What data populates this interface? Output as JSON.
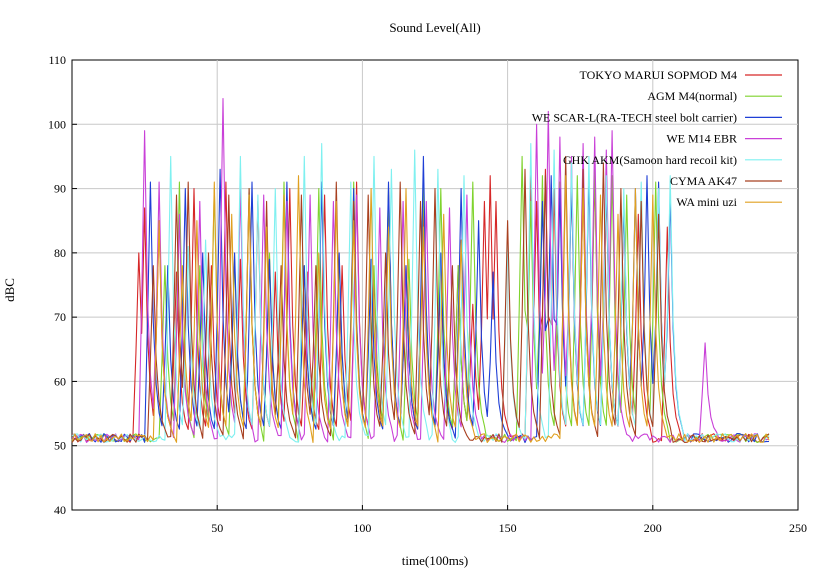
{
  "chart_data": {
    "type": "line",
    "title": "Sound Level(All)",
    "xlabel": "time(100ms)",
    "ylabel": "dBC",
    "xlim": [
      0,
      250
    ],
    "ylim": [
      40,
      110
    ],
    "xticks": [
      50,
      100,
      150,
      200,
      250
    ],
    "yticks": [
      40,
      50,
      60,
      70,
      80,
      90,
      100,
      110
    ],
    "grid": true,
    "legend_position": "top-right",
    "baseline_db": 51.5,
    "series": [
      {
        "name": "TOKYO MARUI SOPMOD M4",
        "color": "#d62728",
        "peaks": [
          [
            23,
            80
          ],
          [
            25,
            87
          ],
          [
            30,
            85
          ],
          [
            36,
            77
          ],
          [
            42,
            90
          ],
          [
            48,
            78
          ],
          [
            53,
            91
          ],
          [
            58,
            79
          ],
          [
            64,
            88
          ],
          [
            70,
            77
          ],
          [
            75,
            90
          ],
          [
            81,
            77
          ],
          [
            87,
            89
          ],
          [
            93,
            78
          ],
          [
            98,
            91
          ],
          [
            104,
            76
          ],
          [
            109,
            89
          ],
          [
            115,
            78
          ],
          [
            121,
            88
          ],
          [
            127,
            77
          ],
          [
            133,
            78
          ],
          [
            138,
            72
          ],
          [
            142,
            88
          ],
          [
            144,
            92
          ],
          [
            146,
            88
          ],
          [
            158,
            92
          ],
          [
            160,
            88
          ],
          [
            163,
            93
          ],
          [
            166,
            90
          ],
          [
            172,
            92
          ],
          [
            176,
            90
          ],
          [
            180,
            92
          ],
          [
            184,
            90
          ],
          [
            190,
            88
          ],
          [
            195,
            86
          ],
          [
            205,
            84
          ]
        ]
      },
      {
        "name": "AGM M4(normal)",
        "color": "#7fd32d",
        "peaks": [
          [
            32,
            78
          ],
          [
            37,
            91
          ],
          [
            44,
            78
          ],
          [
            49,
            90
          ],
          [
            56,
            79
          ],
          [
            61,
            90
          ],
          [
            68,
            80
          ],
          [
            73,
            91
          ],
          [
            80,
            78
          ],
          [
            85,
            90
          ],
          [
            92,
            79
          ],
          [
            97,
            91
          ],
          [
            104,
            78
          ],
          [
            109,
            90
          ],
          [
            116,
            79
          ],
          [
            121,
            91
          ],
          [
            127,
            90
          ],
          [
            133,
            78
          ],
          [
            138,
            91
          ],
          [
            155,
            95
          ],
          [
            158,
            88
          ],
          [
            162,
            92
          ],
          [
            168,
            91
          ],
          [
            174,
            92
          ],
          [
            180,
            93
          ],
          [
            186,
            92
          ],
          [
            191,
            89
          ],
          [
            196,
            90
          ],
          [
            201,
            91
          ]
        ]
      },
      {
        "name": "WE SCAR-L(RA-TECH steel bolt carrier)",
        "color": "#1f3fd6",
        "peaks": [
          [
            27,
            91
          ],
          [
            33,
            78
          ],
          [
            39,
            90
          ],
          [
            45,
            80
          ],
          [
            51,
            93
          ],
          [
            56,
            80
          ],
          [
            62,
            91
          ],
          [
            68,
            79
          ],
          [
            74,
            91
          ],
          [
            80,
            78
          ],
          [
            86,
            91
          ],
          [
            92,
            80
          ],
          [
            97,
            90
          ],
          [
            103,
            79
          ],
          [
            109,
            91
          ],
          [
            115,
            78
          ],
          [
            121,
            95
          ],
          [
            127,
            80
          ],
          [
            134,
            90
          ],
          [
            140,
            85
          ],
          [
            145,
            77
          ],
          [
            162,
            88
          ],
          [
            165,
            92
          ],
          [
            168,
            90
          ],
          [
            172,
            91
          ],
          [
            178,
            92
          ],
          [
            184,
            91
          ],
          [
            190,
            88
          ],
          [
            194,
            90
          ],
          [
            198,
            92
          ],
          [
            202,
            91
          ],
          [
            206,
            89
          ]
        ]
      },
      {
        "name": "WE M14 EBR",
        "color": "#c940d8",
        "peaks": [
          [
            25,
            99
          ],
          [
            30,
            91
          ],
          [
            37,
            86
          ],
          [
            44,
            88
          ],
          [
            52,
            104
          ],
          [
            58,
            90
          ],
          [
            66,
            89
          ],
          [
            74,
            88
          ],
          [
            82,
            89
          ],
          [
            90,
            88
          ],
          [
            98,
            89
          ],
          [
            106,
            87
          ],
          [
            114,
            88
          ],
          [
            122,
            88
          ],
          [
            130,
            87
          ],
          [
            136,
            89
          ],
          [
            160,
            100
          ],
          [
            164,
            102
          ],
          [
            168,
            98
          ],
          [
            172,
            95
          ],
          [
            176,
            97
          ],
          [
            180,
            98
          ],
          [
            184,
            96
          ],
          [
            186,
            99
          ],
          [
            218,
            66
          ]
        ]
      },
      {
        "name": "GHK AKM(Samoon hard recoil kit)",
        "color": "#7ff0f0",
        "peaks": [
          [
            34,
            95
          ],
          [
            40,
            81
          ],
          [
            46,
            82
          ],
          [
            58,
            95
          ],
          [
            64,
            89
          ],
          [
            70,
            90
          ],
          [
            80,
            95
          ],
          [
            86,
            97
          ],
          [
            96,
            91
          ],
          [
            104,
            95
          ],
          [
            110,
            93
          ],
          [
            118,
            96
          ],
          [
            126,
            93
          ],
          [
            135,
            92
          ],
          [
            150,
            82
          ],
          [
            158,
            97
          ],
          [
            166,
            96
          ],
          [
            172,
            94
          ],
          [
            178,
            95
          ],
          [
            184,
            92
          ],
          [
            190,
            90
          ],
          [
            196,
            91
          ],
          [
            202,
            90
          ],
          [
            206,
            92
          ]
        ]
      },
      {
        "name": "CYMA AK47",
        "color": "#a84020",
        "peaks": [
          [
            28,
            78
          ],
          [
            36,
            89
          ],
          [
            40,
            91
          ],
          [
            47,
            80
          ],
          [
            54,
            89
          ],
          [
            61,
            90
          ],
          [
            67,
            88
          ],
          [
            72,
            78
          ],
          [
            79,
            89
          ],
          [
            84,
            78
          ],
          [
            91,
            91
          ],
          [
            97,
            88
          ],
          [
            102,
            89
          ],
          [
            108,
            80
          ],
          [
            113,
            91
          ],
          [
            120,
            88
          ],
          [
            125,
            90
          ],
          [
            131,
            78
          ],
          [
            150,
            85
          ],
          [
            156,
            93
          ],
          [
            163,
            92
          ],
          [
            170,
            95
          ],
          [
            176,
            93
          ],
          [
            183,
            94
          ],
          [
            189,
            90
          ],
          [
            196,
            88
          ],
          [
            202,
            86
          ]
        ]
      },
      {
        "name": "WA mini uzi",
        "color": "#e0a020",
        "peaks": [
          [
            30,
            85
          ],
          [
            38,
            78
          ],
          [
            43,
            85
          ],
          [
            49,
            91
          ],
          [
            55,
            86
          ],
          [
            61,
            89
          ],
          [
            67,
            84
          ],
          [
            73,
            89
          ],
          [
            78,
            92
          ],
          [
            85,
            80
          ],
          [
            91,
            88
          ],
          [
            97,
            85
          ],
          [
            103,
            90
          ],
          [
            109,
            84
          ],
          [
            115,
            90
          ],
          [
            121,
            84
          ],
          [
            128,
            86
          ],
          [
            134,
            82
          ],
          [
            170,
            92
          ],
          [
            176,
            90
          ],
          [
            182,
            89
          ],
          [
            188,
            86
          ],
          [
            194,
            90
          ],
          [
            200,
            89
          ]
        ]
      }
    ]
  }
}
